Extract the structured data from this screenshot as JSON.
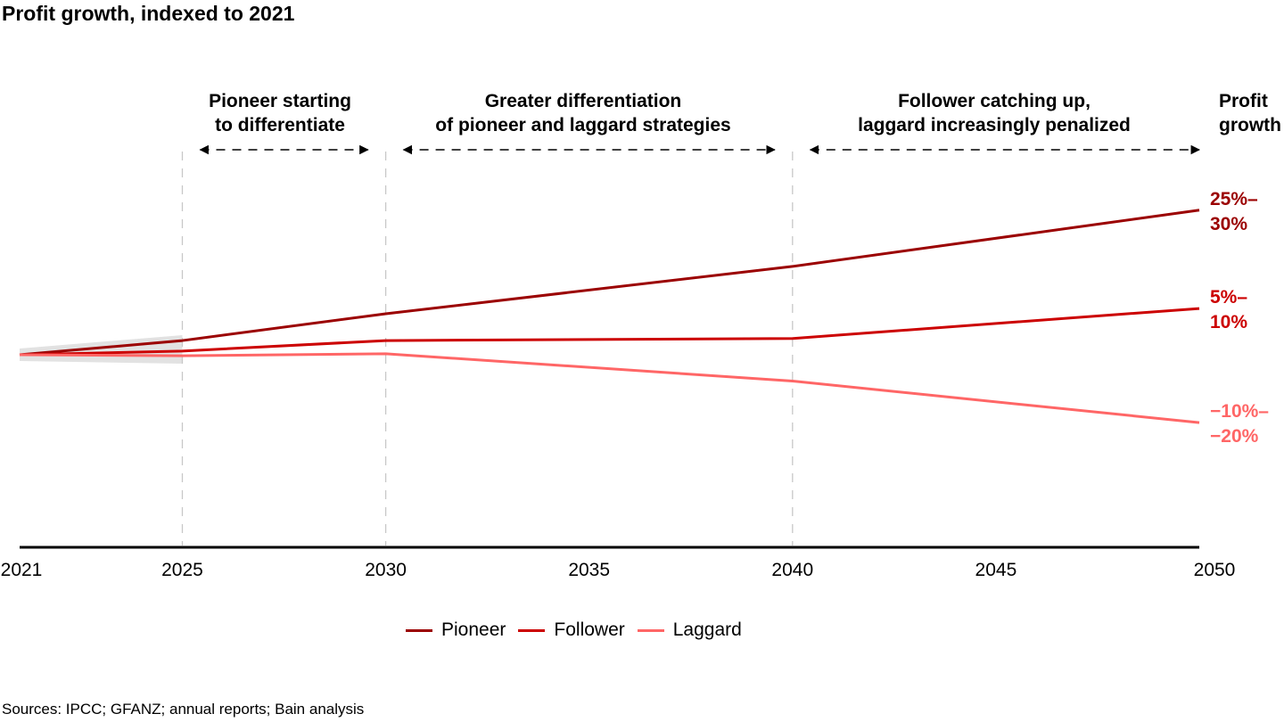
{
  "chart_data": {
    "type": "line",
    "title": "Profit growth, indexed to 2021",
    "xlabel": "",
    "ylabel": "",
    "x_ticks": [
      2021,
      2025,
      2030,
      2035,
      2040,
      2045,
      2050
    ],
    "xlim": [
      2021,
      2050
    ],
    "ylim": [
      63,
      137
    ],
    "grid": false,
    "legend_position": "bottom-center",
    "series": [
      {
        "name": "Pioneer",
        "color": "#9B0000",
        "x": [
          2021,
          2025,
          2030,
          2040,
          2050
        ],
        "values": [
          100,
          102.7,
          107.8,
          116.8,
          127.5
        ]
      },
      {
        "name": "Follower",
        "color": "#CC0000",
        "x": [
          2021,
          2025,
          2030,
          2040,
          2050
        ],
        "values": [
          100,
          100.7,
          102.7,
          103.1,
          108.8
        ]
      },
      {
        "name": "Laggard",
        "color": "#FF6666",
        "x": [
          2021,
          2025,
          2030,
          2040,
          2050
        ],
        "values": [
          100,
          99.8,
          100.2,
          95.0,
          87.1
        ]
      }
    ],
    "uncertainty_band": {
      "x_range": [
        2021,
        2025
      ],
      "color": "#E2E2E2"
    },
    "phase_dividers": [
      2025,
      2030,
      2040
    ],
    "phases": [
      {
        "line1": "Pioneer starting",
        "line2": "to differentiate",
        "from": 2025,
        "to": 2030
      },
      {
        "line1": "Greater differentiation",
        "line2": "of pioneer and laggard strategies",
        "from": 2030,
        "to": 2040
      },
      {
        "line1": "Follower catching up,",
        "line2": "laggard increasingly penalized",
        "from": 2040,
        "to": 2050
      }
    ],
    "end_header": {
      "line1": "Profit",
      "line2": "growth"
    },
    "end_labels": [
      {
        "series": "Pioneer",
        "line1": "25%–",
        "line2": "30%",
        "color": "#9B0000"
      },
      {
        "series": "Follower",
        "line1": "5%–",
        "line2": "10%",
        "color": "#CC0000"
      },
      {
        "series": "Laggard",
        "line1": "−10%–",
        "line2": "−20%",
        "color": "#FF6666"
      }
    ],
    "source": "Sources: IPCC; GFANZ; annual reports; Bain analysis"
  }
}
